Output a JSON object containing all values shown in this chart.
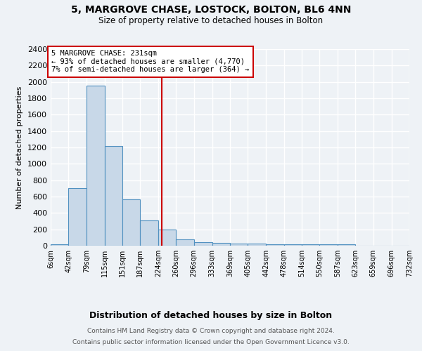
{
  "title1": "5, MARGROVE CHASE, LOSTOCK, BOLTON, BL6 4NN",
  "title2": "Size of property relative to detached houses in Bolton",
  "xlabel": "Distribution of detached houses by size in Bolton",
  "ylabel": "Number of detached properties",
  "bin_labels": [
    "6sqm",
    "42sqm",
    "79sqm",
    "115sqm",
    "151sqm",
    "187sqm",
    "224sqm",
    "260sqm",
    "296sqm",
    "333sqm",
    "369sqm",
    "405sqm",
    "442sqm",
    "478sqm",
    "514sqm",
    "550sqm",
    "587sqm",
    "623sqm",
    "659sqm",
    "696sqm",
    "732sqm"
  ],
  "bin_edges": [
    6,
    42,
    79,
    115,
    151,
    187,
    224,
    260,
    296,
    333,
    369,
    405,
    442,
    478,
    514,
    550,
    587,
    623,
    659,
    696,
    732
  ],
  "bar_heights": [
    20,
    700,
    1950,
    1220,
    570,
    310,
    200,
    80,
    45,
    35,
    30,
    25,
    20,
    15,
    15,
    15,
    20,
    2,
    2,
    2,
    2
  ],
  "bar_color": "#c8d8e8",
  "bar_edge_color": "#5090c0",
  "property_line_x": 231,
  "property_line_color": "#cc0000",
  "ylim": [
    0,
    2400
  ],
  "yticks": [
    0,
    200,
    400,
    600,
    800,
    1000,
    1200,
    1400,
    1600,
    1800,
    2000,
    2200,
    2400
  ],
  "annotation_text": "5 MARGROVE CHASE: 231sqm\n← 93% of detached houses are smaller (4,770)\n7% of semi-detached houses are larger (364) →",
  "annotation_box_color": "#ffffff",
  "annotation_border_color": "#cc0000",
  "footer1": "Contains HM Land Registry data © Crown copyright and database right 2024.",
  "footer2": "Contains public sector information licensed under the Open Government Licence v3.0.",
  "background_color": "#eef2f6",
  "grid_color": "#ffffff"
}
